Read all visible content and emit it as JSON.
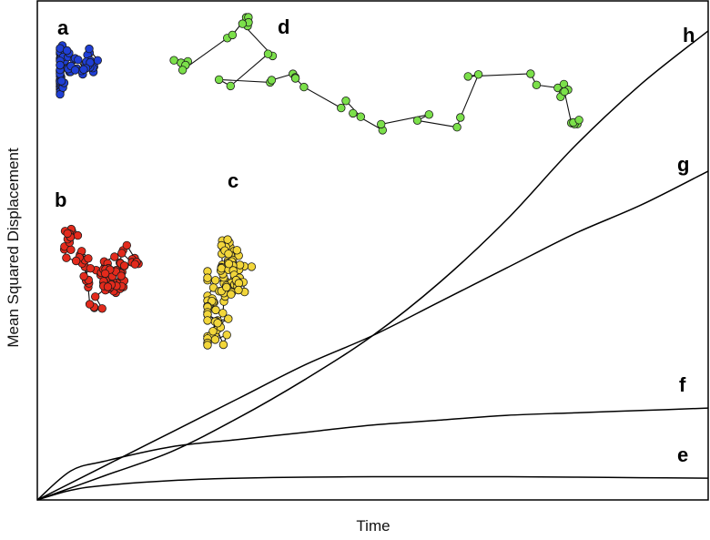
{
  "chart_data": {
    "type": "line",
    "xlabel": "Time",
    "ylabel": "Mean Squared Displacement",
    "grid": false,
    "legend": "none",
    "x_range": [
      0,
      1
    ],
    "y_range": [
      0,
      1
    ],
    "series": [
      {
        "name": "h",
        "model": "superdiffusive",
        "points": [
          [
            0,
            0
          ],
          [
            0.1,
            0.05
          ],
          [
            0.2,
            0.1
          ],
          [
            0.3,
            0.17
          ],
          [
            0.4,
            0.25
          ],
          [
            0.5,
            0.34
          ],
          [
            0.6,
            0.45
          ],
          [
            0.7,
            0.58
          ],
          [
            0.8,
            0.73
          ],
          [
            0.9,
            0.86
          ],
          [
            1.0,
            0.97
          ]
        ]
      },
      {
        "name": "g",
        "model": "diffusive",
        "points": [
          [
            0,
            0
          ],
          [
            0.1,
            0.07
          ],
          [
            0.2,
            0.14
          ],
          [
            0.3,
            0.21
          ],
          [
            0.4,
            0.28
          ],
          [
            0.5,
            0.34
          ],
          [
            0.6,
            0.41
          ],
          [
            0.7,
            0.48
          ],
          [
            0.8,
            0.55
          ],
          [
            0.9,
            0.61
          ],
          [
            1.0,
            0.68
          ]
        ]
      },
      {
        "name": "f",
        "model": "subdiffusive",
        "points": [
          [
            0,
            0
          ],
          [
            0.05,
            0.06
          ],
          [
            0.1,
            0.08
          ],
          [
            0.2,
            0.11
          ],
          [
            0.3,
            0.125
          ],
          [
            0.4,
            0.14
          ],
          [
            0.5,
            0.155
          ],
          [
            0.6,
            0.165
          ],
          [
            0.7,
            0.175
          ],
          [
            0.8,
            0.18
          ],
          [
            0.9,
            0.185
          ],
          [
            1.0,
            0.19
          ]
        ]
      },
      {
        "name": "e",
        "model": "confined",
        "points": [
          [
            0,
            0
          ],
          [
            0.05,
            0.02
          ],
          [
            0.1,
            0.03
          ],
          [
            0.2,
            0.04
          ],
          [
            0.3,
            0.045
          ],
          [
            0.4,
            0.047
          ],
          [
            0.5,
            0.048
          ],
          [
            0.6,
            0.048
          ],
          [
            0.7,
            0.048
          ],
          [
            0.8,
            0.047
          ],
          [
            0.9,
            0.046
          ],
          [
            1.0,
            0.045
          ]
        ]
      }
    ],
    "trajectories": [
      {
        "label": "a",
        "color": "#1f3fd6",
        "style": "compact cluster"
      },
      {
        "label": "b",
        "color": "#e32a1c",
        "style": "meandering cluster"
      },
      {
        "label": "c",
        "color": "#f2d63a",
        "style": "extended cluster"
      },
      {
        "label": "d",
        "color": "#7be04a",
        "style": "directed walk with pauses"
      }
    ]
  }
}
